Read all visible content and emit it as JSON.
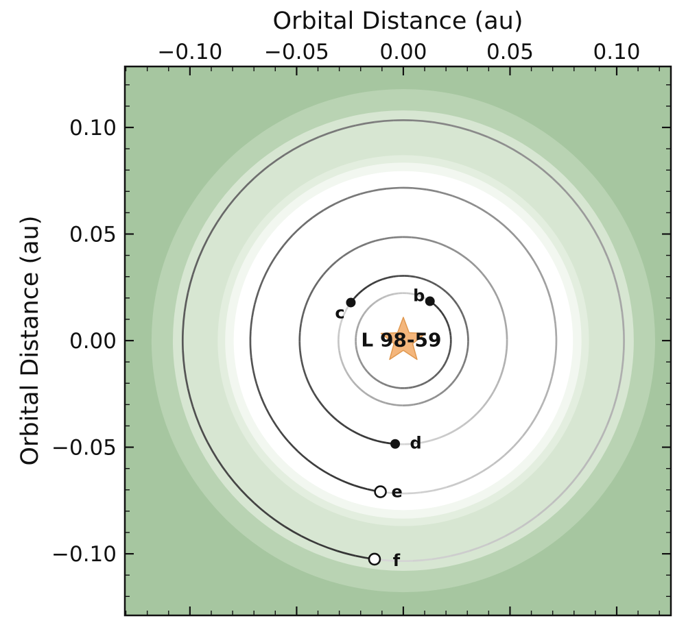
{
  "chart_data": {
    "type": "scatter",
    "title": "",
    "xlabel": "Orbital Distance (au)",
    "ylabel": "Orbital Distance (au)",
    "xlim": [
      -0.1305,
      0.1254
    ],
    "ylim": [
      -0.1289,
      0.1286
    ],
    "grid": false,
    "ticks": {
      "major_values": [
        -0.1,
        -0.05,
        0.0,
        0.05,
        0.1
      ],
      "major_labels": [
        "−0.10",
        "−0.05",
        "0.00",
        "0.05",
        "0.10"
      ],
      "minor_step": 0.01
    },
    "axis_color": "#111111",
    "star": {
      "name": "L 98-59",
      "x_au": 0,
      "y_au": 0,
      "fill": "#f4b67c",
      "edge": "#e0984f",
      "label_offset": [
        -3,
        -1
      ]
    },
    "planets": [
      {
        "name": "b",
        "semi_major_axis_au": 0.0223,
        "position_angle_deg": 56,
        "marker": "filled",
        "label_offset": [
          -16,
          -8
        ]
      },
      {
        "name": "c",
        "semi_major_axis_au": 0.0304,
        "position_angle_deg": 144,
        "marker": "filled",
        "label_offset": [
          -16,
          15
        ]
      },
      {
        "name": "d",
        "semi_major_axis_au": 0.0486,
        "position_angle_deg": 265.5,
        "marker": "filled",
        "label_offset": [
          30,
          -1
        ]
      },
      {
        "name": "e",
        "semi_major_axis_au": 0.0717,
        "position_angle_deg": 261.4,
        "marker": "open",
        "label_offset": [
          24,
          0
        ]
      },
      {
        "name": "f",
        "semi_major_axis_au": 0.1034,
        "position_angle_deg": 262.5,
        "marker": "open",
        "label_offset": [
          32,
          2
        ]
      }
    ],
    "background_zones": [
      {
        "outer_edge_au": null,
        "color": "#a6c6a0"
      },
      {
        "outer_edge_au": 0.118,
        "color": "#b9d3b3"
      },
      {
        "outer_edge_au": 0.108,
        "color": "#d7e6d2"
      },
      {
        "outer_edge_au": 0.087,
        "color": "#e3eedf"
      },
      {
        "outer_edge_au": 0.0835,
        "color": "#f2f7f0"
      },
      {
        "outer_edge_au": 0.0795,
        "color": "#ffffff"
      }
    ],
    "orbit_trail": {
      "dark_gray": 50,
      "light_gray": 215,
      "stroke_width": 2.7
    },
    "marker_style": {
      "filled_color": "#131313",
      "open_fill": "#ffffff",
      "open_stroke": "#131313"
    }
  }
}
